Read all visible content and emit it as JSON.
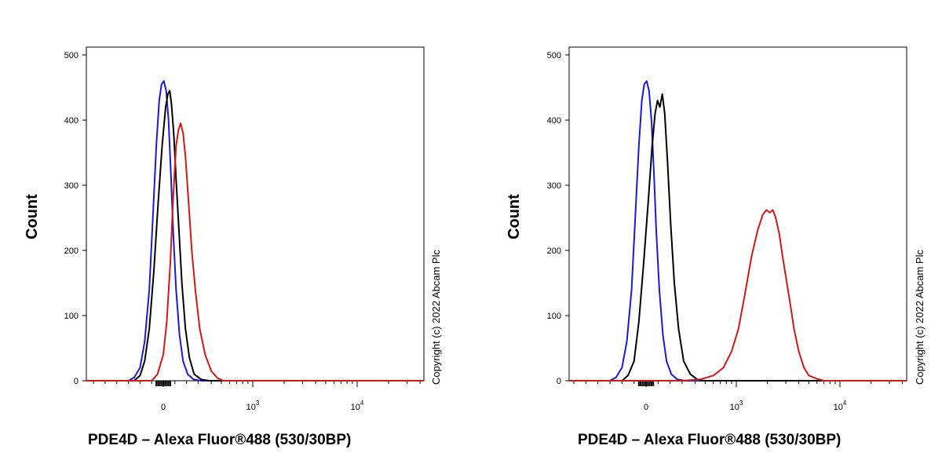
{
  "chart_data": [
    {
      "type": "line",
      "ylabel": "Count",
      "xlabel": "PDE4D – Alexa Fluor®488 (530/30BP)",
      "copyright": "Copyright (c) 2022 Abcam Plc",
      "y_ticks": [
        "0",
        "100",
        "200",
        "300",
        "400",
        "500"
      ],
      "x_ticks": [
        {
          "value": 0,
          "base": "0",
          "exp": ""
        },
        {
          "value": 1000,
          "base": "10",
          "exp": "3"
        },
        {
          "value": 10000,
          "base": "10",
          "exp": "4"
        }
      ],
      "ylim": [
        0,
        500
      ],
      "x_scale": "biexponential",
      "series": [
        {
          "color": "#1a1ad0",
          "points": [
            [
              -300,
              0
            ],
            [
              -250,
              5
            ],
            [
              -200,
              20
            ],
            [
              -160,
              60
            ],
            [
              -120,
              140
            ],
            [
              -90,
              250
            ],
            [
              -60,
              360
            ],
            [
              -35,
              430
            ],
            [
              -15,
              455
            ],
            [
              5,
              460
            ],
            [
              25,
              445
            ],
            [
              45,
              400
            ],
            [
              65,
              320
            ],
            [
              85,
              230
            ],
            [
              110,
              140
            ],
            [
              140,
              70
            ],
            [
              170,
              30
            ],
            [
              210,
              10
            ],
            [
              260,
              2
            ],
            [
              320,
              0
            ]
          ]
        },
        {
          "color": "#000000",
          "points": [
            [
              -250,
              0
            ],
            [
              -200,
              8
            ],
            [
              -160,
              30
            ],
            [
              -120,
              80
            ],
            [
              -80,
              170
            ],
            [
              -45,
              270
            ],
            [
              -10,
              360
            ],
            [
              20,
              420
            ],
            [
              40,
              440
            ],
            [
              55,
              445
            ],
            [
              70,
              425
            ],
            [
              90,
              380
            ],
            [
              110,
              310
            ],
            [
              135,
              230
            ],
            [
              160,
              150
            ],
            [
              190,
              80
            ],
            [
              225,
              35
            ],
            [
              265,
              10
            ],
            [
              320,
              2
            ],
            [
              380,
              0
            ]
          ]
        },
        {
          "color": "#d01818",
          "points": [
            [
              -100,
              0
            ],
            [
              -50,
              10
            ],
            [
              0,
              40
            ],
            [
              30,
              90
            ],
            [
              60,
              180
            ],
            [
              85,
              280
            ],
            [
              110,
              360
            ],
            [
              130,
              385
            ],
            [
              150,
              395
            ],
            [
              170,
              380
            ],
            [
              190,
              345
            ],
            [
              215,
              280
            ],
            [
              245,
              200
            ],
            [
              275,
              140
            ],
            [
              310,
              80
            ],
            [
              350,
              40
            ],
            [
              400,
              15
            ],
            [
              460,
              4
            ],
            [
              520,
              0
            ]
          ]
        }
      ]
    },
    {
      "type": "line",
      "ylabel": "Count",
      "xlabel": "PDE4D – Alexa Fluor®488 (530/30BP)",
      "copyright": "Copyright (c) 2022 Abcam Plc",
      "y_ticks": [
        "0",
        "100",
        "200",
        "300",
        "400",
        "500"
      ],
      "x_ticks": [
        {
          "value": 0,
          "base": "0",
          "exp": ""
        },
        {
          "value": 1000,
          "base": "10",
          "exp": "3"
        },
        {
          "value": 10000,
          "base": "10",
          "exp": "4"
        }
      ],
      "ylim": [
        0,
        500
      ],
      "x_scale": "biexponential",
      "series": [
        {
          "color": "#1a1ad0",
          "points": [
            [
              -300,
              0
            ],
            [
              -250,
              5
            ],
            [
              -200,
              20
            ],
            [
              -160,
              60
            ],
            [
              -120,
              140
            ],
            [
              -90,
              250
            ],
            [
              -60,
              360
            ],
            [
              -35,
              430
            ],
            [
              -15,
              455
            ],
            [
              5,
              460
            ],
            [
              25,
              445
            ],
            [
              45,
              400
            ],
            [
              65,
              320
            ],
            [
              85,
              230
            ],
            [
              110,
              140
            ],
            [
              140,
              70
            ],
            [
              170,
              30
            ],
            [
              210,
              10
            ],
            [
              260,
              2
            ],
            [
              320,
              0
            ]
          ]
        },
        {
          "color": "#000000",
          "points": [
            [
              -200,
              0
            ],
            [
              -150,
              8
            ],
            [
              -100,
              30
            ],
            [
              -60,
              90
            ],
            [
              -20,
              180
            ],
            [
              20,
              280
            ],
            [
              50,
              360
            ],
            [
              75,
              410
            ],
            [
              95,
              430
            ],
            [
              115,
              420
            ],
            [
              135,
              440
            ],
            [
              155,
              410
            ],
            [
              180,
              330
            ],
            [
              205,
              240
            ],
            [
              235,
              150
            ],
            [
              270,
              80
            ],
            [
              310,
              30
            ],
            [
              360,
              10
            ],
            [
              420,
              2
            ],
            [
              480,
              0
            ]
          ]
        },
        {
          "color": "#d01818",
          "points": [
            [
              300,
              0
            ],
            [
              450,
              2
            ],
            [
              600,
              8
            ],
            [
              750,
              20
            ],
            [
              900,
              45
            ],
            [
              1050,
              80
            ],
            [
              1200,
              130
            ],
            [
              1400,
              190
            ],
            [
              1600,
              230
            ],
            [
              1800,
              255
            ],
            [
              1950,
              262
            ],
            [
              2100,
              258
            ],
            [
              2250,
              262
            ],
            [
              2400,
              250
            ],
            [
              2600,
              225
            ],
            [
              2800,
              190
            ],
            [
              3000,
              160
            ],
            [
              3300,
              120
            ],
            [
              3600,
              80
            ],
            [
              4000,
              45
            ],
            [
              4500,
              20
            ],
            [
              5000,
              8
            ],
            [
              6000,
              3
            ],
            [
              7000,
              0
            ]
          ]
        }
      ]
    }
  ]
}
